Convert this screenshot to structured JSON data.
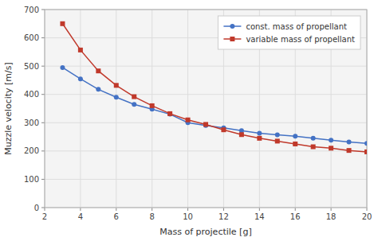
{
  "chart_data": {
    "type": "line",
    "xlabel": "Mass of projectile [g]",
    "ylabel": "Muzzle velocity [m/s]",
    "x": [
      3,
      4,
      5,
      6,
      7,
      8,
      9,
      10,
      11,
      12,
      13,
      14,
      15,
      16,
      17,
      18,
      19,
      20
    ],
    "series": [
      {
        "name": "const. mass of propellant",
        "color": "#4472C4",
        "marker": "circle",
        "values": [
          495,
          455,
          418,
          390,
          365,
          348,
          330,
          300,
          290,
          282,
          272,
          263,
          257,
          252,
          245,
          238,
          232,
          227
        ]
      },
      {
        "name": "variable mass of propellant",
        "color": "#C0392B",
        "marker": "square",
        "values": [
          650,
          557,
          483,
          432,
          392,
          360,
          332,
          310,
          294,
          275,
          258,
          245,
          235,
          225,
          215,
          210,
          202,
          197
        ]
      }
    ],
    "xlim": [
      2,
      20
    ],
    "ylim": [
      0,
      700
    ],
    "xticks": [
      2,
      4,
      6,
      8,
      10,
      12,
      14,
      16,
      18,
      20
    ],
    "yticks": [
      0,
      100,
      200,
      300,
      400,
      500,
      600,
      700
    ],
    "grid": true,
    "legend": "upper right"
  }
}
